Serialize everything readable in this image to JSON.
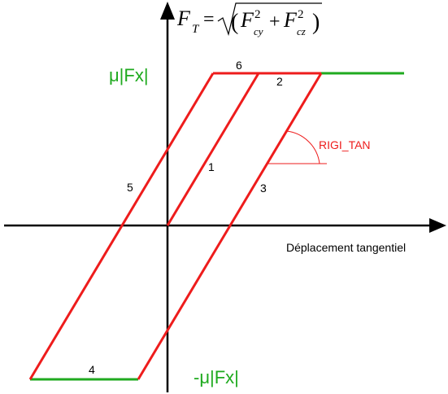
{
  "formula": {
    "lhs": "F",
    "lhs_sub": "T",
    "eq": "=",
    "f1": "F",
    "f1_sup": "2",
    "f1_sub": "cy",
    "plus": "+",
    "f2": "F",
    "f2_sup": "2",
    "f2_sub": "cz"
  },
  "labels": {
    "mu_top": "μ|Fx|",
    "mu_bottom": "-μ|Fx|",
    "x_axis": "Déplacement tangentiel",
    "rigi_tan": "RIGI_TAN",
    "seg1": "1",
    "seg2": "2",
    "seg3": "3",
    "seg4": "4",
    "seg5": "5",
    "seg6": "6"
  },
  "colors": {
    "axis": "#000000",
    "slope": "#ee1c1c",
    "friction_limit": "#1faa1f",
    "mu_label": "#1faa1f",
    "rigi_label": "#ee1c1c"
  }
}
